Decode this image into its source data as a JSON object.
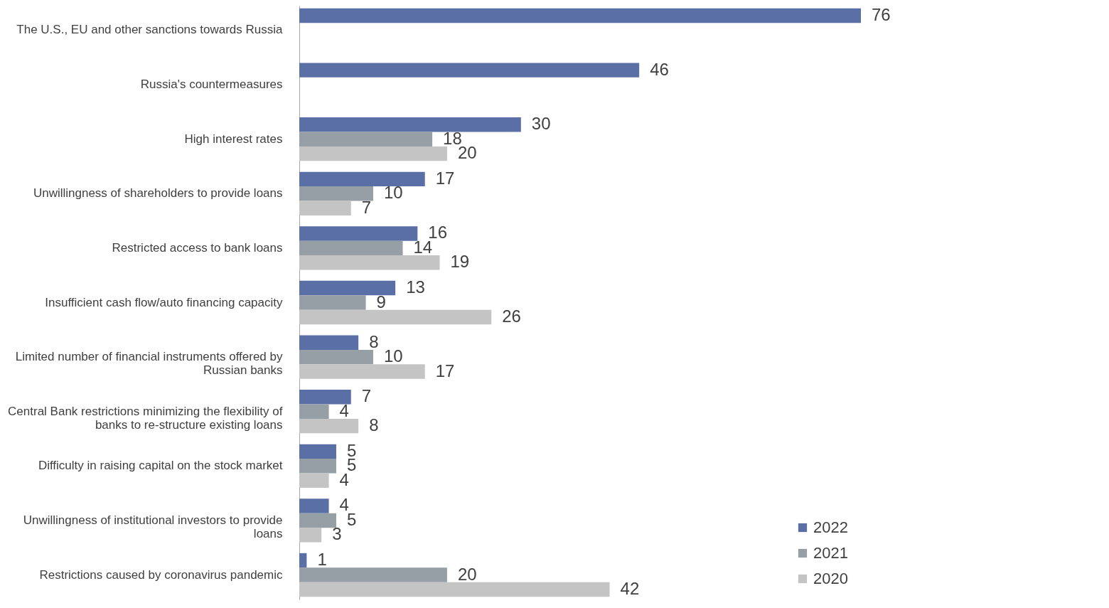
{
  "chart_data": {
    "type": "bar",
    "orientation": "horizontal",
    "data_labels": true,
    "legend": "bottom right",
    "categories": [
      "The U.S., EU and other sanctions towards Russia",
      "Russia's countermeasures",
      "High interest rates",
      "Unwillingness of shareholders to provide loans",
      "Restricted access to bank loans",
      "Insufficient cash flow/auto financing capacity",
      "Limited number of financial instruments offered by Russian banks",
      "Central Bank restrictions minimizing the flexibility of banks to re-structure existing loans",
      "Difficulty in raising capital on the stock market",
      "Unwillingness of institutional investors to provide loans",
      "Restrictions caused by coronavirus pandemic"
    ],
    "series": [
      {
        "name": "2022",
        "color": "#5a6fa5",
        "values": [
          76,
          46,
          30,
          17,
          16,
          13,
          8,
          7,
          5,
          4,
          1
        ]
      },
      {
        "name": "2021",
        "color": "#969ea6",
        "values": [
          null,
          null,
          18,
          10,
          14,
          9,
          10,
          4,
          5,
          5,
          20
        ]
      },
      {
        "name": "2020",
        "color": "#c4c4c4",
        "values": [
          null,
          null,
          20,
          7,
          19,
          26,
          17,
          8,
          4,
          3,
          42
        ]
      }
    ]
  }
}
